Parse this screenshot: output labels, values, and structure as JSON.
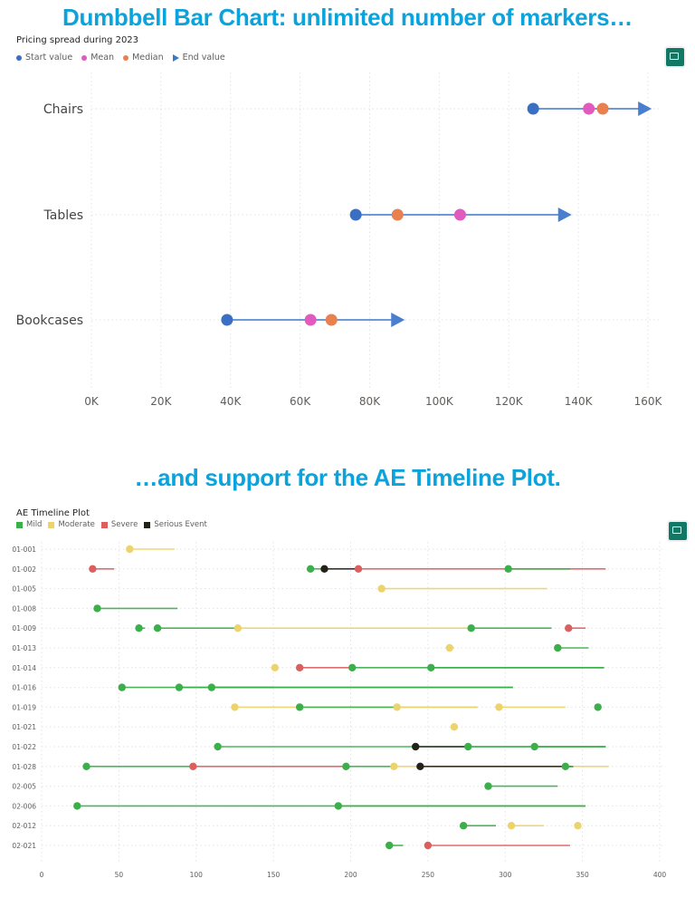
{
  "headlines": {
    "top": "Dumbbell Bar Chart: unlimited number of markers…",
    "bottom": "…and support for the AE Timeline Plot."
  },
  "colors": {
    "headline": "#0AA3DC",
    "focus_button": "#117865"
  },
  "chart_data": [
    {
      "type": "dumbbell",
      "title": "Pricing spread during 2023",
      "legend": [
        {
          "name": "Start value",
          "color": "#3a6fc4",
          "marker": "circle"
        },
        {
          "name": "Mean",
          "color": "#e15bbf",
          "marker": "circle"
        },
        {
          "name": "Median",
          "color": "#e8804f",
          "marker": "circle"
        },
        {
          "name": "End value",
          "color": "#4a7fcf",
          "marker": "triangle"
        }
      ],
      "legend_position": "top-left",
      "categories": [
        "Chairs",
        "Tables",
        "Bookcases"
      ],
      "series": [
        {
          "name": "Start value",
          "values": [
            127,
            76,
            39
          ]
        },
        {
          "name": "Mean",
          "values": [
            143,
            106,
            63
          ]
        },
        {
          "name": "Median",
          "values": [
            147,
            88,
            69
          ]
        },
        {
          "name": "End value",
          "values": [
            159,
            136,
            88
          ]
        }
      ],
      "unit": "K",
      "xlim": [
        0,
        160
      ],
      "xticks": [
        "0K",
        "20K",
        "40K",
        "60K",
        "80K",
        "100K",
        "120K",
        "140K",
        "160K"
      ],
      "grid": true
    },
    {
      "type": "timeline",
      "title": "AE Timeline Plot",
      "legend": [
        {
          "name": "Mild",
          "color": "#3aaf4a"
        },
        {
          "name": "Moderate",
          "color": "#ecd36b"
        },
        {
          "name": "Severe",
          "color": "#dc5f5f"
        },
        {
          "name": "Serious Event",
          "color": "#222218"
        }
      ],
      "legend_position": "top-left",
      "xlim": [
        0,
        400
      ],
      "xticks": [
        "0",
        "50",
        "100",
        "150",
        "200",
        "250",
        "300",
        "350",
        "400"
      ],
      "grid": true,
      "subjects": [
        {
          "id": "01-001",
          "events": [
            [
              57,
              86,
              "Moderate"
            ]
          ]
        },
        {
          "id": "01-002",
          "events": [
            [
              33,
              47,
              "Severe"
            ],
            [
              174,
              183,
              "Mild"
            ],
            [
              205,
              365,
              "Severe"
            ],
            [
              183,
              205,
              "Serious Event"
            ],
            [
              302,
              342,
              "Mild"
            ]
          ]
        },
        {
          "id": "01-005",
          "events": [
            [
              220,
              327,
              "Moderate"
            ]
          ]
        },
        {
          "id": "01-008",
          "events": [
            [
              36,
              88,
              "Mild"
            ]
          ]
        },
        {
          "id": "01-009",
          "events": [
            [
              63,
              67,
              "Mild"
            ],
            [
              75,
              127,
              "Mild"
            ],
            [
              127,
              278,
              "Moderate"
            ],
            [
              278,
              330,
              "Mild"
            ],
            [
              341,
              352,
              "Severe"
            ]
          ]
        },
        {
          "id": "01-013",
          "events": [
            [
              264,
              267,
              "Moderate"
            ],
            [
              334,
              354,
              "Mild"
            ]
          ]
        },
        {
          "id": "01-014",
          "events": [
            [
              151,
              151,
              "Moderate"
            ],
            [
              167,
              201,
              "Severe"
            ],
            [
              201,
              364,
              "Mild"
            ],
            [
              252,
              364,
              "Mild"
            ]
          ]
        },
        {
          "id": "01-016",
          "events": [
            [
              52,
              305,
              "Mild"
            ],
            [
              89,
              150,
              "Mild"
            ],
            [
              110,
              305,
              "Mild"
            ]
          ]
        },
        {
          "id": "01-019",
          "events": [
            [
              125,
              282,
              "Moderate"
            ],
            [
              167,
              230,
              "Mild"
            ],
            [
              230,
              282,
              "Moderate"
            ],
            [
              296,
              339,
              "Moderate"
            ],
            [
              360,
              362,
              "Mild"
            ]
          ]
        },
        {
          "id": "01-021",
          "events": [
            [
              267,
              267,
              "Moderate"
            ]
          ]
        },
        {
          "id": "01-022",
          "events": [
            [
              114,
              365,
              "Mild"
            ],
            [
              242,
              276,
              "Serious Event"
            ],
            [
              276,
              365,
              "Mild"
            ],
            [
              319,
              365,
              "Mild"
            ]
          ]
        },
        {
          "id": "01-028",
          "events": [
            [
              29,
              98,
              "Mild"
            ],
            [
              98,
              197,
              "Severe"
            ],
            [
              197,
              228,
              "Mild"
            ],
            [
              228,
              367,
              "Moderate"
            ],
            [
              245,
              344,
              "Serious Event"
            ],
            [
              339,
              344,
              "Mild"
            ]
          ]
        },
        {
          "id": "02-005",
          "events": [
            [
              289,
              334,
              "Mild"
            ]
          ]
        },
        {
          "id": "02-006",
          "events": [
            [
              23,
              352,
              "Mild"
            ],
            [
              192,
              352,
              "Mild"
            ]
          ]
        },
        {
          "id": "02-012",
          "events": [
            [
              273,
              294,
              "Mild"
            ],
            [
              304,
              325,
              "Moderate"
            ],
            [
              347,
              349,
              "Moderate"
            ]
          ]
        },
        {
          "id": "02-021",
          "events": [
            [
              225,
              234,
              "Mild"
            ],
            [
              250,
              342,
              "Severe"
            ]
          ]
        }
      ]
    }
  ]
}
